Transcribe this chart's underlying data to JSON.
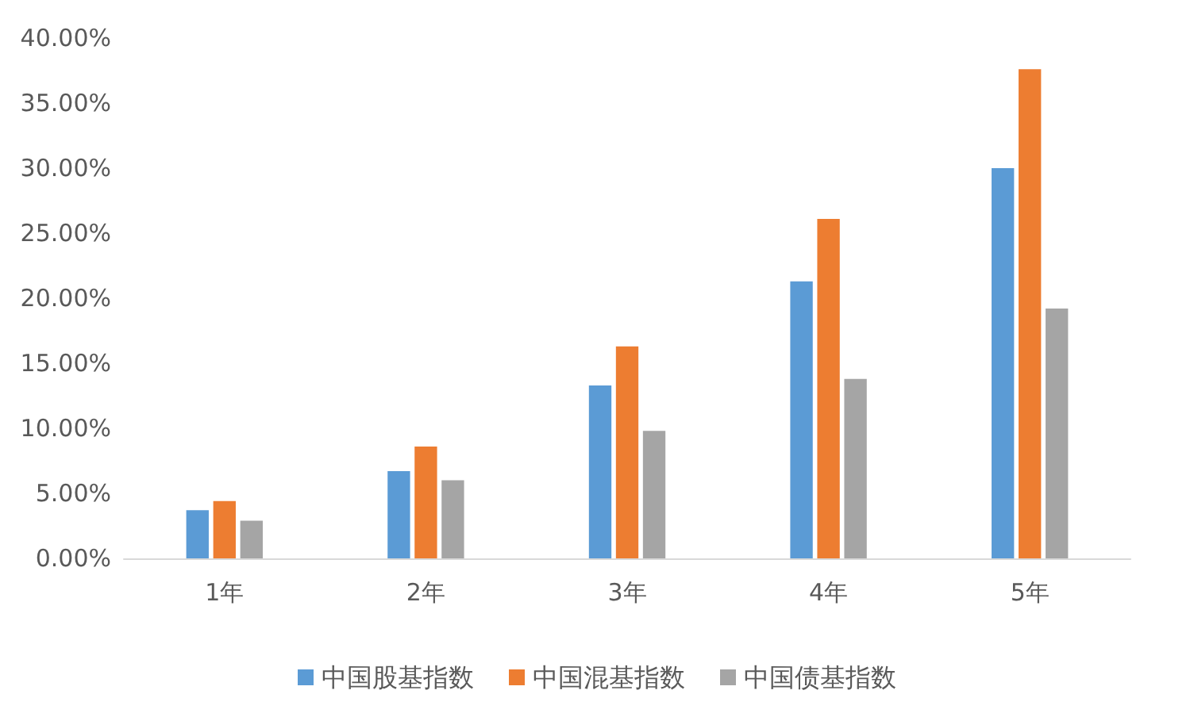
{
  "chart_data": {
    "type": "bar",
    "categories": [
      "1年",
      "2年",
      "3年",
      "4年",
      "5年"
    ],
    "series": [
      {
        "name": "中国股基指数",
        "color": "#5b9bd5",
        "values": [
          3.7,
          6.7,
          13.3,
          21.3,
          30.0
        ]
      },
      {
        "name": "中国混基指数",
        "color": "#ed7d31",
        "values": [
          4.4,
          8.6,
          16.3,
          26.1,
          37.6
        ]
      },
      {
        "name": "中国债基指数",
        "color": "#a5a5a5",
        "values": [
          2.9,
          6.0,
          9.8,
          13.8,
          19.2
        ]
      }
    ],
    "ylim": [
      0,
      40
    ],
    "yticks": [
      {
        "value": 0,
        "label": "0.00%"
      },
      {
        "value": 5,
        "label": "5.00%"
      },
      {
        "value": 10,
        "label": "10.00%"
      },
      {
        "value": 15,
        "label": "15.00%"
      },
      {
        "value": 20,
        "label": "20.00%"
      },
      {
        "value": 25,
        "label": "25.00%"
      },
      {
        "value": 30,
        "label": "30.00%"
      },
      {
        "value": 35,
        "label": "35.00%"
      },
      {
        "value": 40,
        "label": "40.00%"
      }
    ],
    "grid": false,
    "legend": "bottom"
  }
}
